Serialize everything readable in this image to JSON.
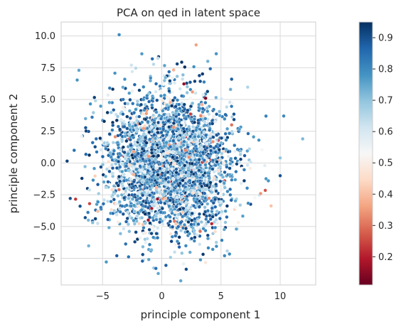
{
  "chart_data": {
    "type": "scatter",
    "title": "PCA on qed in latent space",
    "xlabel": "principle component 1",
    "ylabel": "principle component 2",
    "xlim": [
      -8.5,
      13.0
    ],
    "ylim": [
      -9.6,
      11.1
    ],
    "xticks": [
      -5,
      0,
      5,
      10
    ],
    "xtick_labels": [
      "−5",
      "0",
      "5",
      "10"
    ],
    "yticks": [
      -7.5,
      -5.0,
      -2.5,
      0.0,
      2.5,
      5.0,
      7.5,
      10.0
    ],
    "ytick_labels": [
      "−7.5",
      "−5.0",
      "−2.5",
      "0.0",
      "2.5",
      "5.0",
      "7.5",
      "10.0"
    ],
    "grid": true,
    "colorbar": {
      "cmap": "RdBu",
      "range": [
        0.11,
        0.95
      ],
      "ticks": [
        0.2,
        0.3,
        0.4,
        0.5,
        0.6,
        0.7,
        0.8,
        0.9
      ],
      "tick_labels": [
        "0.2",
        "0.3",
        "0.4",
        "0.5",
        "0.6",
        "0.7",
        "0.8",
        "0.9"
      ],
      "stops": [
        "#67001f",
        "#b2182b",
        "#d6604d",
        "#f4a582",
        "#fddbc7",
        "#f7f7f7",
        "#d1e5f0",
        "#92c5de",
        "#4393c3",
        "#2166ac",
        "#053061"
      ]
    },
    "points": [
      [
        -3.6,
        10.1,
        0.8
      ],
      [
        -0.8,
        8.2,
        0.85
      ],
      [
        1.3,
        7.8,
        0.92
      ],
      [
        2.9,
        9.3,
        0.36
      ],
      [
        4.6,
        8.6,
        0.78
      ],
      [
        -7.0,
        7.3,
        0.75
      ],
      [
        -4.4,
        5.9,
        0.82
      ],
      [
        5.9,
        6.6,
        0.88
      ],
      [
        10.3,
        3.7,
        0.8
      ],
      [
        11.9,
        1.9,
        0.72
      ],
      [
        10.0,
        0.4,
        0.7
      ],
      [
        8.2,
        1.8,
        0.78
      ],
      [
        10.0,
        -1.0,
        0.9
      ],
      [
        9.0,
        -1.4,
        0.78
      ],
      [
        -7.4,
        1.0,
        0.85
      ],
      [
        -6.9,
        -3.4,
        0.9
      ],
      [
        -6.2,
        -4.5,
        0.72
      ],
      [
        -3.8,
        -7.3,
        0.88
      ],
      [
        -1.1,
        -7.6,
        0.75
      ],
      [
        1.7,
        -7.1,
        0.7
      ],
      [
        -0.5,
        -8.3,
        0.85
      ],
      [
        -0.3,
        -8.7,
        0.75
      ],
      [
        5.3,
        -7.3,
        0.8
      ],
      [
        6.3,
        -5.2,
        0.75
      ],
      [
        3.7,
        5.1,
        0.13
      ],
      [
        5.9,
        3.0,
        0.3
      ],
      [
        -1.3,
        3.9,
        0.35
      ],
      [
        -6.1,
        -3.2,
        0.25
      ],
      [
        -5.4,
        -3.8,
        0.4
      ],
      [
        2.0,
        1.0,
        0.32
      ],
      [
        3.4,
        4.6,
        0.38
      ],
      [
        0.3,
        -2.8,
        0.4
      ],
      [
        -4.2,
        -2.1,
        0.45
      ],
      [
        1.2,
        -4.8,
        0.42
      ],
      [
        4.8,
        -0.6,
        0.45
      ],
      [
        -2.4,
        -0.9,
        0.38
      ],
      [
        8.7,
        -0.2,
        0.58
      ],
      [
        -6.8,
        2.1,
        0.55
      ],
      [
        3.2,
        -6.4,
        0.62
      ],
      [
        -2.5,
        7.2,
        0.6
      ],
      [
        0.9,
        6.7,
        0.55
      ],
      [
        -5.6,
        4.9,
        0.65
      ]
    ]
  }
}
